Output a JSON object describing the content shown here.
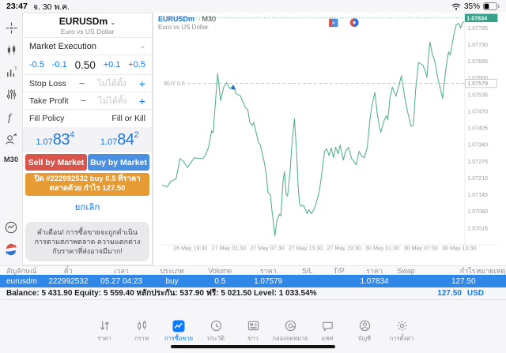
{
  "status_bar": {
    "time": "23:47",
    "date": "จ. 30 พ.ค.",
    "battery_percent": "35%"
  },
  "sidebar": {
    "timeframe": "M30",
    "icons": [
      "crosshair-icon",
      "candlestick-icon",
      "indicators-icon",
      "objects-sliders-icon",
      "function-icon",
      "trader-profile-icon",
      "stats-circle-icon",
      "mt-logo-icon"
    ]
  },
  "order_panel": {
    "symbol": "EURUSDm",
    "symbol_desc": "Euro vs US Dollar",
    "execution_mode": "Market Execution",
    "volume": {
      "minus_big": "-0.5",
      "minus_small": "-0.1",
      "value": "0.50",
      "plus_small": "+0.1",
      "plus_big": "+0.5"
    },
    "stop_loss": {
      "label": "Stop Loss",
      "minus": "−",
      "placeholder": "ไม่ได้ตั้ง",
      "plus": "+"
    },
    "take_profit": {
      "label": "Take Profit",
      "minus": "−",
      "placeholder": "ไม่ได้ตั้ง",
      "plus": "+"
    },
    "fill_policy": {
      "label": "Fill Policy",
      "value": "Fill or Kill"
    },
    "bid": {
      "prefix": "1.07",
      "big": "83",
      "sup": "4"
    },
    "ask": {
      "prefix": "1.07",
      "big": "84",
      "sup": "2"
    },
    "sell_label": "Sell by Market",
    "buy_label": "Buy by Market",
    "close_banner": "ปิด #222992532 buy 0.5 ที่ราคาตลาดด้วย กำไร 127.50",
    "cancel_label": "ยกเลิก",
    "warning": "คำเตือน! การซื้อขายจะถูกดำเนินการตามสภาพตลาด ความแตกต่างกับราคาที่ส่งอาจมีมาก!"
  },
  "chart": {
    "header_symbol": "EURUSDm",
    "header_timeframe": "∙ M30",
    "description": "Euro vs US Dollar"
  },
  "chart_data": {
    "type": "line",
    "title": "EURUSDm M30",
    "x_labels": [
      "26 May 19:30",
      "27 May 01:30",
      "27 May 07:30",
      "27 May 13:30",
      "27 May 19:30",
      "30 May 01:30",
      "30 May 07:30",
      "30 May 13:30"
    ],
    "x_label_positions": [
      0.0925,
      0.22,
      0.3475,
      0.475,
      0.6025,
      0.73,
      0.8575,
      0.985
    ],
    "y_ticks": [
      1.07795,
      1.0773,
      1.07665,
      1.076,
      1.07535,
      1.0747,
      1.07405,
      1.0734,
      1.07275,
      1.0721,
      1.07145,
      1.0708,
      1.07015
    ],
    "ylim": [
      1.06958,
      1.07843
    ],
    "current_price": 1.07834,
    "position_price": 1.07579,
    "position_label": "BUY 0.5",
    "buy_marker": {
      "x": 0.235,
      "price": 1.07579
    },
    "line_color": "#53ae8b",
    "series": [
      {
        "name": "EURUSDm close",
        "color": "#53ae8b",
        "points": [
          [
            0.0,
            1.07183
          ],
          [
            0.015,
            1.07175
          ],
          [
            0.028,
            1.07198
          ],
          [
            0.045,
            1.07207
          ],
          [
            0.058,
            1.07286
          ],
          [
            0.068,
            1.07277
          ],
          [
            0.083,
            1.07251
          ],
          [
            0.105,
            1.07289
          ],
          [
            0.133,
            1.07286
          ],
          [
            0.143,
            1.07301
          ],
          [
            0.153,
            1.0733
          ],
          [
            0.163,
            1.07394
          ],
          [
            0.168,
            1.07386
          ],
          [
            0.183,
            1.07617
          ],
          [
            0.193,
            1.07512
          ],
          [
            0.203,
            1.07564
          ],
          [
            0.213,
            1.07582
          ],
          [
            0.223,
            1.07559
          ],
          [
            0.235,
            1.0757
          ],
          [
            0.245,
            1.07538
          ],
          [
            0.258,
            1.07532
          ],
          [
            0.275,
            1.07485
          ],
          [
            0.283,
            1.07477
          ],
          [
            0.29,
            1.07427
          ],
          [
            0.298,
            1.07415
          ],
          [
            0.303,
            1.07427
          ],
          [
            0.31,
            1.07392
          ],
          [
            0.318,
            1.07351
          ],
          [
            0.325,
            1.07339
          ],
          [
            0.338,
            1.07271
          ],
          [
            0.345,
            1.07219
          ],
          [
            0.35,
            1.07154
          ],
          [
            0.358,
            1.07145
          ],
          [
            0.365,
            1.07066
          ],
          [
            0.373,
            1.06984
          ],
          [
            0.38,
            1.07046
          ],
          [
            0.388,
            1.07069
          ],
          [
            0.393,
            1.07063
          ],
          [
            0.4,
            1.07198
          ],
          [
            0.405,
            1.07236
          ],
          [
            0.41,
            1.07148
          ],
          [
            0.415,
            1.0714
          ],
          [
            0.423,
            1.07228
          ],
          [
            0.43,
            1.07345
          ],
          [
            0.438,
            1.07441
          ],
          [
            0.445,
            1.07315
          ],
          [
            0.45,
            1.07183
          ],
          [
            0.455,
            1.0711
          ],
          [
            0.46,
            1.07101
          ],
          [
            0.468,
            1.07104
          ],
          [
            0.475,
            1.07087
          ],
          [
            0.48,
            1.07072
          ],
          [
            0.485,
            1.07087
          ],
          [
            0.495,
            1.07072
          ],
          [
            0.503,
            1.0709
          ],
          [
            0.508,
            1.07104
          ],
          [
            0.52,
            1.07154
          ],
          [
            0.53,
            1.07236
          ],
          [
            0.538,
            1.07315
          ],
          [
            0.545,
            1.07324
          ],
          [
            0.553,
            1.07298
          ],
          [
            0.56,
            1.07327
          ],
          [
            0.568,
            1.07289
          ],
          [
            0.575,
            1.0733
          ],
          [
            0.583,
            1.07304
          ],
          [
            0.59,
            1.07339
          ],
          [
            0.6,
            1.0728
          ],
          [
            0.608,
            1.07315
          ],
          [
            0.618,
            1.0733
          ],
          [
            0.628,
            1.07286
          ],
          [
            0.635,
            1.07277
          ],
          [
            0.643,
            1.07262
          ],
          [
            0.653,
            1.07315
          ],
          [
            0.66,
            1.07298
          ],
          [
            0.67,
            1.07289
          ],
          [
            0.68,
            1.0733
          ],
          [
            0.688,
            1.07432
          ],
          [
            0.695,
            1.07491
          ],
          [
            0.705,
            1.07544
          ],
          [
            0.713,
            1.07462
          ],
          [
            0.72,
            1.07409
          ],
          [
            0.725,
            1.07389
          ],
          [
            0.735,
            1.07432
          ],
          [
            0.743,
            1.07453
          ],
          [
            0.748,
            1.07438
          ],
          [
            0.755,
            1.0752
          ],
          [
            0.763,
            1.07564
          ],
          [
            0.77,
            1.07544
          ],
          [
            0.775,
            1.07529
          ],
          [
            0.783,
            1.07564
          ],
          [
            0.793,
            1.07608
          ],
          [
            0.8,
            1.07556
          ],
          [
            0.805,
            1.0752
          ],
          [
            0.815,
            1.07462
          ],
          [
            0.825,
            1.07412
          ],
          [
            0.833,
            1.07418
          ],
          [
            0.84,
            1.0755
          ],
          [
            0.85,
            1.07661
          ],
          [
            0.858,
            1.07655
          ],
          [
            0.865,
            1.07649
          ],
          [
            0.873,
            1.07623
          ],
          [
            0.878,
            1.07602
          ],
          [
            0.883,
            1.07682
          ],
          [
            0.888,
            1.0774
          ],
          [
            0.895,
            1.07696
          ],
          [
            0.905,
            1.07661
          ],
          [
            0.915,
            1.07594
          ],
          [
            0.923,
            1.07556
          ],
          [
            0.93,
            1.0752
          ],
          [
            0.938,
            1.07608
          ],
          [
            0.945,
            1.07673
          ],
          [
            0.95,
            1.07702
          ],
          [
            0.955,
            1.0769
          ],
          [
            0.963,
            1.0774
          ],
          [
            0.97,
            1.07784
          ],
          [
            0.975,
            1.07807
          ],
          [
            0.983,
            1.07813
          ],
          [
            0.99,
            1.07795
          ],
          [
            0.995,
            1.07813
          ],
          [
            1.0,
            1.07819
          ]
        ]
      }
    ]
  },
  "positions_table": {
    "headers": [
      "สัญลักษณ์",
      "ตั๋ว",
      "เวลา",
      "ประเภท",
      "Volume",
      "ราคา",
      "S/L",
      "T/P",
      "ราคา",
      "Swap",
      "กำไร",
      "หมายเหตุ"
    ],
    "row": [
      "eurusdm",
      "222992532",
      "05.27 04:23",
      "buy",
      "0.5",
      "1.07579",
      "",
      "",
      "1.07834",
      "",
      "127.50",
      ""
    ],
    "balance_line": "Balance: 5 431.90 Equity: 5 559.40 หลักประกัน: 537.90 ฟรี: 5 021.50 Level: 1 033.54%",
    "profit": "127.50",
    "currency": "USD"
  },
  "toolbar": {
    "items": [
      {
        "label": "ราคา",
        "icon": "quotes-arrows-icon"
      },
      {
        "label": "กราฟ",
        "icon": "chart-candles-icon"
      },
      {
        "label": "การซื้อขาย",
        "icon": "trade-icon"
      },
      {
        "label": "ประวัติ",
        "icon": "history-clock-icon"
      },
      {
        "label": "ข่าว",
        "icon": "news-icon"
      },
      {
        "label": "กล่องจดหมาย",
        "icon": "mailbox-at-icon"
      },
      {
        "label": "แชท",
        "icon": "chat-bubble-icon"
      },
      {
        "label": "บัญชี",
        "icon": "account-person-icon"
      },
      {
        "label": "การตั้งค่า",
        "icon": "settings-gear-icon"
      }
    ],
    "active_index": 2
  },
  "colors": {
    "accent_blue": "#0a7aff",
    "table_row_blue": "#2f87e8",
    "sell_red": "#d9544a",
    "buy_blue": "#4a90e2",
    "banner_orange": "#e79b33",
    "chart_line": "#53ae8b"
  }
}
